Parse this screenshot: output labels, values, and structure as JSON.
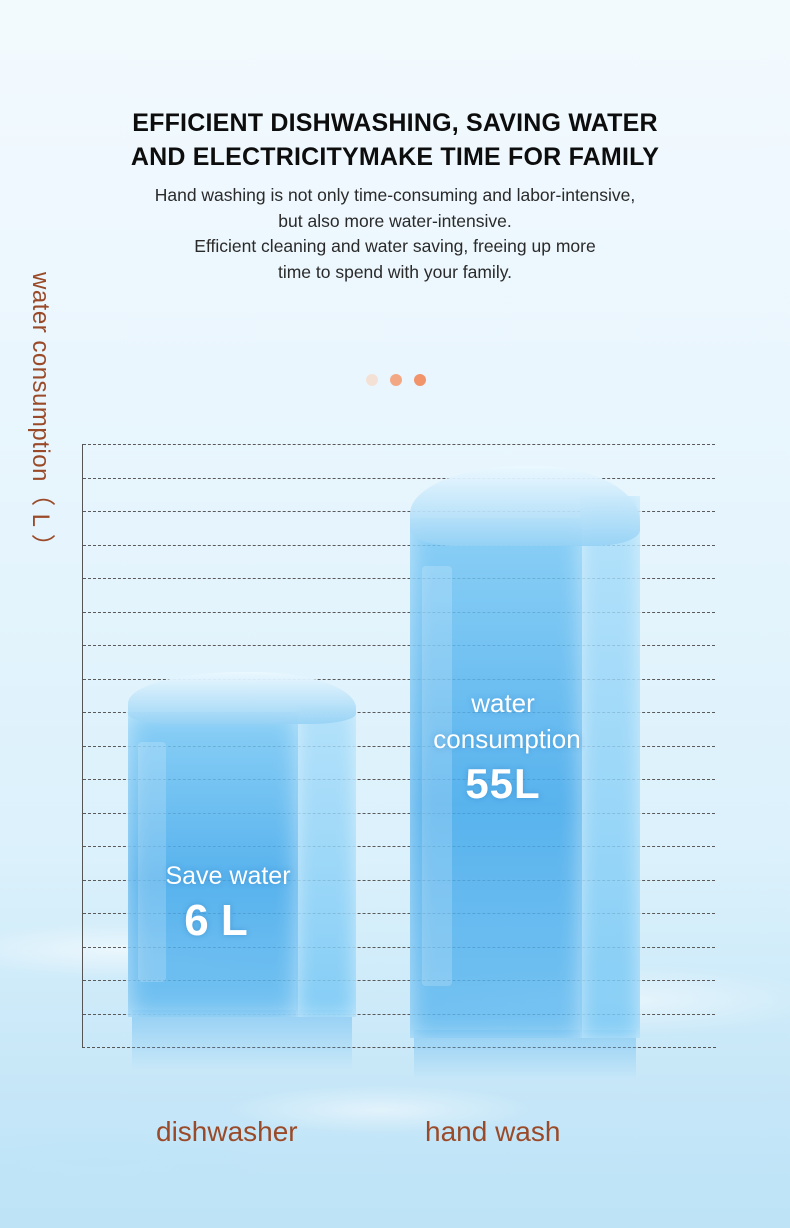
{
  "header": {
    "title_line1": "EFFICIENT DISHWASHING, SAVING WATER",
    "title_line2": "AND ELECTRICITYMAKE TIME FOR FAMILY",
    "desc_line1": "Hand washing is not only time-consuming and labor-intensive,",
    "desc_line2": "but also more water-intensive.",
    "desc_line3": "Efficient cleaning and water saving, freeing up more",
    "desc_line4": "time to spend with your family."
  },
  "colors": {
    "accent": "#9a4a28",
    "dot_light": "#f4e1d6",
    "dot_mid": "#f3a884",
    "dot_strong": "#f1946a",
    "water_blue": "#5ab4ee"
  },
  "chart_data": {
    "type": "bar",
    "ylabel": "water consumption（ L ）",
    "categories": [
      "dishwasher",
      "hand wash"
    ],
    "grid": true,
    "bars": [
      {
        "category": "dishwasher",
        "label": "Save water",
        "value_text": "6 L"
      },
      {
        "category": "hand wash",
        "label_line1": "water",
        "label_line2": "consumption",
        "value_text": "55L"
      }
    ]
  }
}
